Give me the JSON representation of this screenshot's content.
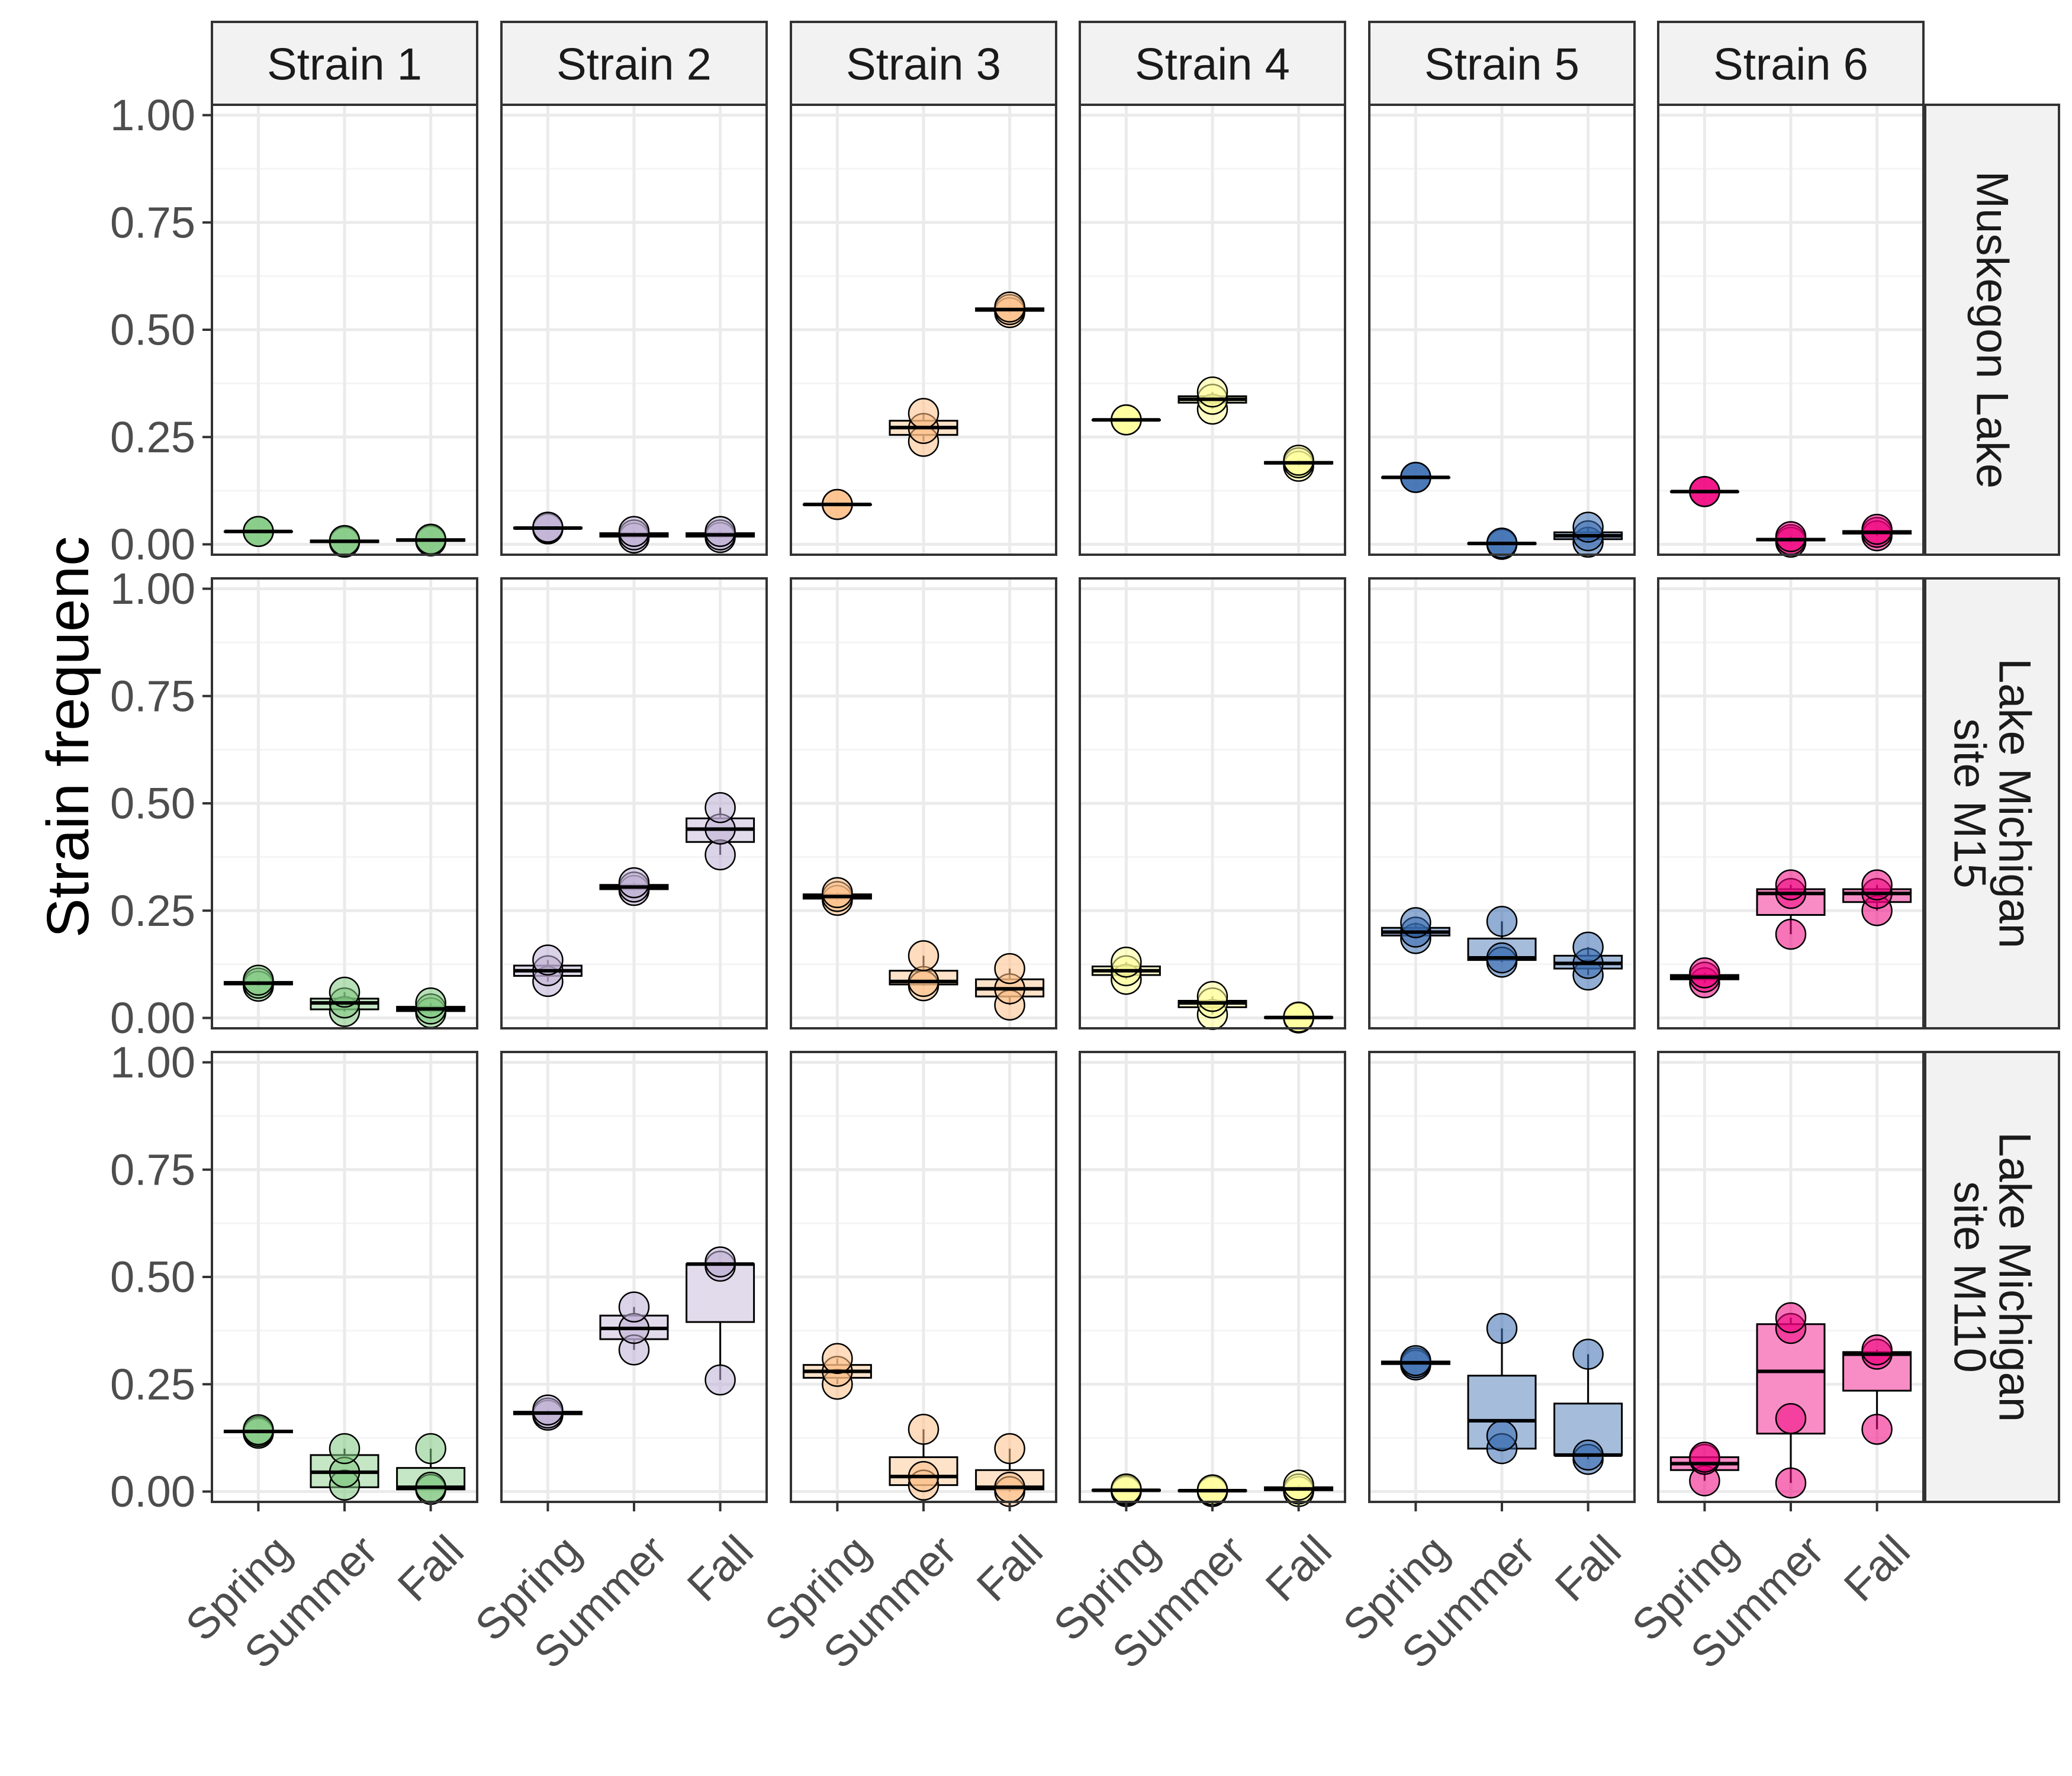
{
  "chart_data": {
    "type": "boxplot",
    "ylabel": "Strain frequenc",
    "ylim": [
      0,
      1
    ],
    "y_ticks": [
      "0.00",
      "0.25",
      "0.50",
      "0.75",
      "1.00"
    ],
    "categories": [
      "Spring",
      "Summer",
      "Fall"
    ],
    "column_facets": [
      "Strain 1",
      "Strain 2",
      "Strain 3",
      "Strain 4",
      "Strain 5",
      "Strain 6"
    ],
    "row_facets": [
      [
        "Muskegon Lake"
      ],
      [
        "Lake Michigan",
        "site M15"
      ],
      [
        "Lake Michigan",
        "site M110"
      ]
    ],
    "colors": [
      "#7fc97f",
      "#beaed4",
      "#fdc086",
      "#ffff99",
      "#386cb0",
      "#f0027f"
    ],
    "panels": [
      [
        {
          "Spring": {
            "box": [
              0.03,
              0.03,
              0.03
            ],
            "points": [
              0.03,
              0.03,
              0.03
            ]
          },
          "Summer": {
            "box": [
              0.005,
              0.007,
              0.009
            ],
            "points": [
              0.005,
              0.007,
              0.009
            ]
          },
          "Fall": {
            "box": [
              0.008,
              0.01,
              0.012
            ],
            "points": [
              0.008,
              0.01,
              0.012
            ]
          }
        },
        {
          "Spring": {
            "box": [
              0.037,
              0.038,
              0.039
            ],
            "points": [
              0.036,
              0.038,
              0.04
            ]
          },
          "Summer": {
            "box": [
              0.018,
              0.022,
              0.026
            ],
            "points": [
              0.015,
              0.022,
              0.03
            ]
          },
          "Fall": {
            "box": [
              0.018,
              0.022,
              0.026
            ],
            "points": [
              0.016,
              0.022,
              0.03
            ]
          }
        },
        {
          "Spring": {
            "box": [
              0.093,
              0.093,
              0.093
            ],
            "points": [
              0.093,
              0.093,
              0.093
            ]
          },
          "Summer": {
            "box": [
              0.255,
              0.272,
              0.288
            ],
            "points": [
              0.24,
              0.27,
              0.305
            ]
          },
          "Fall": {
            "box": [
              0.544,
              0.547,
              0.55
            ],
            "points": [
              0.54,
              0.547,
              0.553
            ]
          }
        },
        {
          "Spring": {
            "box": [
              0.29,
              0.29,
              0.29
            ],
            "points": [
              0.29,
              0.29,
              0.29
            ]
          },
          "Summer": {
            "box": [
              0.33,
              0.338,
              0.345
            ],
            "points": [
              0.315,
              0.338,
              0.355
            ]
          },
          "Fall": {
            "box": [
              0.188,
              0.19,
              0.192
            ],
            "points": [
              0.182,
              0.19,
              0.196
            ]
          }
        },
        {
          "Spring": {
            "box": [
              0.156,
              0.156,
              0.156
            ],
            "points": [
              0.156,
              0.156,
              0.156
            ]
          },
          "Summer": {
            "box": [
              0.001,
              0.002,
              0.003
            ],
            "points": [
              0.0,
              0.002,
              0.003
            ]
          },
          "Fall": {
            "box": [
              0.012,
              0.02,
              0.028
            ],
            "points": [
              0.005,
              0.02,
              0.04
            ]
          }
        },
        {
          "Spring": {
            "box": [
              0.123,
              0.123,
              0.123
            ],
            "points": [
              0.123,
              0.123,
              0.123
            ]
          },
          "Summer": {
            "box": [
              0.009,
              0.011,
              0.013
            ],
            "points": [
              0.005,
              0.011,
              0.018
            ]
          },
          "Fall": {
            "box": [
              0.025,
              0.028,
              0.031
            ],
            "points": [
              0.02,
              0.028,
              0.035
            ]
          }
        }
      ],
      [
        {
          "Spring": {
            "box": [
              0.078,
              0.081,
              0.084
            ],
            "points": [
              0.074,
              0.081,
              0.088
            ]
          },
          "Summer": {
            "box": [
              0.02,
              0.035,
              0.045
            ],
            "points": [
              0.015,
              0.035,
              0.06
            ]
          },
          "Fall": {
            "box": [
              0.016,
              0.021,
              0.026
            ],
            "points": [
              0.012,
              0.021,
              0.035
            ]
          }
        },
        {
          "Spring": {
            "box": [
              0.098,
              0.11,
              0.122
            ],
            "points": [
              0.085,
              0.11,
              0.135
            ]
          },
          "Summer": {
            "box": [
              0.3,
              0.305,
              0.31
            ],
            "points": [
              0.297,
              0.305,
              0.315
            ]
          },
          "Fall": {
            "box": [
              0.41,
              0.44,
              0.465
            ],
            "points": [
              0.38,
              0.44,
              0.49
            ]
          }
        },
        {
          "Spring": {
            "box": [
              0.278,
              0.283,
              0.288
            ],
            "points": [
              0.274,
              0.283,
              0.292
            ]
          },
          "Summer": {
            "box": [
              0.078,
              0.085,
              0.11
            ],
            "points": [
              0.075,
              0.085,
              0.145
            ]
          },
          "Fall": {
            "box": [
              0.05,
              0.068,
              0.09
            ],
            "points": [
              0.03,
              0.068,
              0.115
            ]
          }
        },
        {
          "Spring": {
            "box": [
              0.1,
              0.11,
              0.12
            ],
            "points": [
              0.09,
              0.11,
              0.13
            ]
          },
          "Summer": {
            "box": [
              0.025,
              0.035,
              0.04
            ],
            "points": [
              0.008,
              0.035,
              0.05
            ]
          },
          "Fall": {
            "box": [
              0.0,
              0.001,
              0.002
            ],
            "points": [
              0.0,
              0.001,
              0.002
            ]
          }
        },
        {
          "Spring": {
            "box": [
              0.192,
              0.2,
              0.21
            ],
            "points": [
              0.185,
              0.2,
              0.222
            ]
          },
          "Summer": {
            "box": [
              0.135,
              0.14,
              0.185
            ],
            "points": [
              0.13,
              0.14,
              0.225
            ]
          },
          "Fall": {
            "box": [
              0.115,
              0.127,
              0.145
            ],
            "points": [
              0.1,
              0.127,
              0.165
            ]
          }
        },
        {
          "Spring": {
            "box": [
              0.09,
              0.095,
              0.1
            ],
            "points": [
              0.082,
              0.095,
              0.105
            ]
          },
          "Summer": {
            "box": [
              0.24,
              0.29,
              0.3
            ],
            "points": [
              0.195,
              0.29,
              0.31
            ]
          },
          "Fall": {
            "box": [
              0.27,
              0.29,
              0.3
            ],
            "points": [
              0.25,
              0.29,
              0.31
            ]
          }
        }
      ],
      [
        {
          "Spring": {
            "box": [
              0.138,
              0.14,
              0.142
            ],
            "points": [
              0.136,
              0.14,
              0.144
            ]
          },
          "Summer": {
            "box": [
              0.01,
              0.045,
              0.085
            ],
            "points": [
              0.015,
              0.045,
              0.1
            ]
          },
          "Fall": {
            "box": [
              0.005,
              0.01,
              0.055
            ],
            "points": [
              0.005,
              0.01,
              0.1
            ]
          }
        },
        {
          "Spring": {
            "box": [
              0.18,
              0.183,
              0.186
            ],
            "points": [
              0.178,
              0.183,
              0.19
            ]
          },
          "Summer": {
            "box": [
              0.355,
              0.38,
              0.41
            ],
            "points": [
              0.33,
              0.38,
              0.43
            ]
          },
          "Fall": {
            "box": [
              0.395,
              0.53,
              0.53
            ],
            "points": [
              0.26,
              0.525,
              0.535
            ]
          }
        },
        {
          "Spring": {
            "box": [
              0.265,
              0.28,
              0.295
            ],
            "points": [
              0.25,
              0.28,
              0.31
            ]
          },
          "Summer": {
            "box": [
              0.015,
              0.035,
              0.08
            ],
            "points": [
              0.015,
              0.035,
              0.145
            ]
          },
          "Fall": {
            "box": [
              0.005,
              0.01,
              0.05
            ],
            "points": [
              0.0,
              0.01,
              0.1
            ]
          }
        },
        {
          "Spring": {
            "box": [
              0.002,
              0.003,
              0.004
            ],
            "points": [
              0.0,
              0.003,
              0.006
            ]
          },
          "Summer": {
            "box": [
              0.001,
              0.002,
              0.003
            ],
            "points": [
              0.0,
              0.002,
              0.004
            ]
          },
          "Fall": {
            "box": [
              0.003,
              0.006,
              0.01
            ],
            "points": [
              0.0,
              0.006,
              0.015
            ]
          }
        },
        {
          "Spring": {
            "box": [
              0.297,
              0.3,
              0.303
            ],
            "points": [
              0.295,
              0.3,
              0.305
            ]
          },
          "Summer": {
            "box": [
              0.1,
              0.165,
              0.27
            ],
            "points": [
              0.1,
              0.13,
              0.38
            ]
          },
          "Fall": {
            "box": [
              0.085,
              0.085,
              0.205
            ],
            "points": [
              0.075,
              0.085,
              0.32
            ]
          }
        },
        {
          "Spring": {
            "box": [
              0.05,
              0.065,
              0.08
            ],
            "points": [
              0.025,
              0.075,
              0.08
            ]
          },
          "Summer": {
            "box": [
              0.135,
              0.28,
              0.39
            ],
            "points": [
              0.02,
              0.17,
              0.38,
              0.405
            ]
          },
          "Fall": {
            "box": [
              0.235,
              0.32,
              0.325
            ],
            "points": [
              0.145,
              0.32,
              0.33
            ]
          }
        }
      ]
    ]
  }
}
